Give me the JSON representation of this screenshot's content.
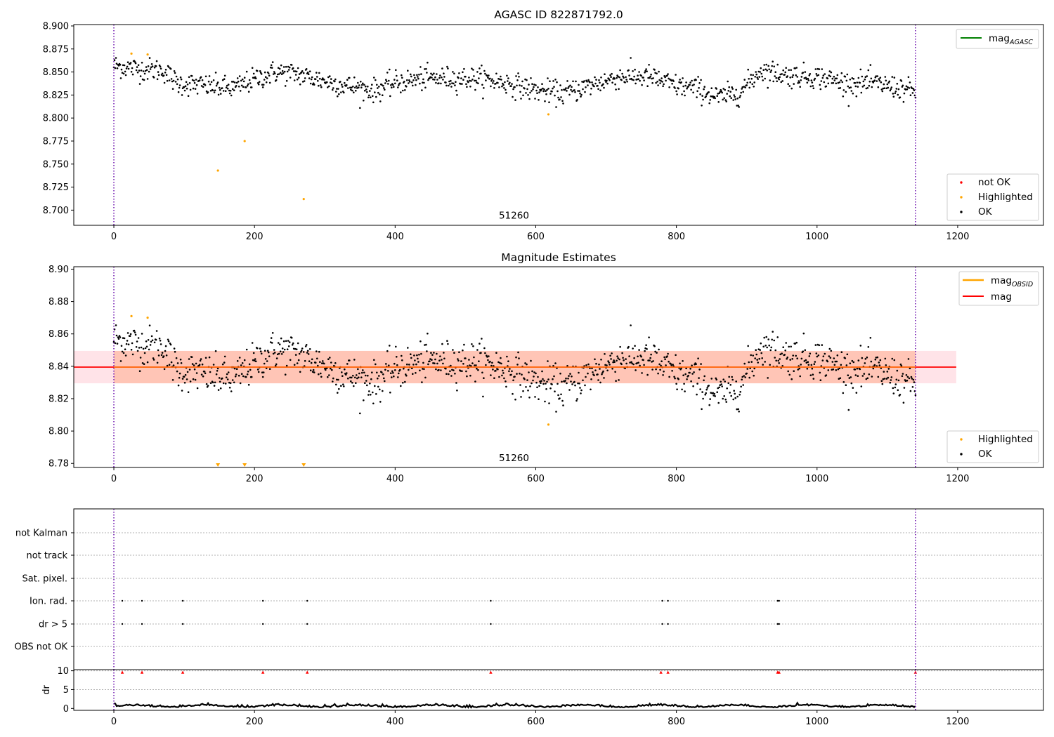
{
  "chart_data": [
    {
      "id": "agasc",
      "type": "scatter",
      "title": "AGASC ID 822871792.0",
      "xlim": [
        -57,
        1322
      ],
      "ylim": [
        8.6835,
        8.9015
      ],
      "xticks": [
        0,
        200,
        400,
        600,
        800,
        1000,
        1200
      ],
      "yticks": [
        8.7,
        8.725,
        8.75,
        8.775,
        8.8,
        8.825,
        8.85,
        8.875,
        8.9
      ],
      "ytick_labels": [
        "8.700",
        "8.725",
        "8.750",
        "8.775",
        "8.800",
        "8.825",
        "8.850",
        "8.875",
        "8.900"
      ],
      "vlines": [
        0,
        1140
      ],
      "annotation": {
        "text": "51260",
        "x": 569,
        "y": 8.6945
      },
      "legend_lines": [
        {
          "label": "mag",
          "sub": "AGASC",
          "color": "#008000"
        }
      ],
      "legend_points": [
        {
          "label": "not OK",
          "color": "#ff0000"
        },
        {
          "label": "Highlighted",
          "color": "#ffa500"
        },
        {
          "label": "OK",
          "color": "#000000"
        }
      ],
      "highlighted": [
        [
          25,
          8.87
        ],
        [
          48,
          8.869
        ],
        [
          148,
          8.743
        ],
        [
          186,
          8.775
        ],
        [
          270,
          8.712
        ],
        [
          618,
          8.804
        ]
      ]
    },
    {
      "id": "mag-estimates",
      "type": "scatter",
      "title": "Magnitude Estimates",
      "xlim": [
        -57,
        1322
      ],
      "ylim": [
        8.7775,
        8.9015
      ],
      "xticks": [
        0,
        200,
        400,
        600,
        800,
        1000,
        1200
      ],
      "yticks": [
        8.78,
        8.8,
        8.82,
        8.84,
        8.86,
        8.88,
        8.9
      ],
      "ytick_labels": [
        "8.78",
        "8.80",
        "8.82",
        "8.84",
        "8.86",
        "8.88",
        "8.90"
      ],
      "vlines": [
        0,
        1140
      ],
      "annotation": {
        "text": "51260",
        "x": 569,
        "y": 8.7835
      },
      "mag": 8.8395,
      "band": [
        8.8295,
        8.8495
      ],
      "band_x_end": 1198,
      "legend_lines": [
        {
          "label": "mag",
          "sub": "OBSID",
          "color": "#ffa500"
        },
        {
          "label": "mag",
          "sub": "",
          "color": "#ff0000"
        }
      ],
      "legend_points": [
        {
          "label": "Highlighted",
          "color": "#ffa500"
        },
        {
          "label": "OK",
          "color": "#000000"
        }
      ],
      "highlighted": [
        [
          25,
          8.871
        ],
        [
          48,
          8.87
        ],
        [
          618,
          8.804
        ]
      ],
      "offscale_markers": [
        148,
        186,
        270
      ]
    },
    {
      "id": "flags",
      "type": "scatter",
      "xlim": [
        -57,
        1322
      ],
      "categories": [
        "not Kalman",
        "not track",
        "Sat. pixel.",
        "Ion. rad.",
        "dr > 5",
        "OBS not OK"
      ],
      "flag_x": [
        12,
        40,
        98,
        212,
        275,
        536,
        780,
        788,
        944,
        946
      ],
      "flagged_rows": [
        "Ion. rad.",
        "dr > 5"
      ],
      "vlines": [
        0,
        1140
      ]
    },
    {
      "id": "dr",
      "type": "line",
      "ylabel": "dr",
      "xlim": [
        -57,
        1322
      ],
      "ylim": [
        -0.5,
        10.3
      ],
      "xticks": [
        0,
        200,
        400,
        600,
        800,
        1000,
        1200
      ],
      "yticks": [
        0,
        5,
        10
      ],
      "ytick_labels": [
        "0",
        "5",
        "10"
      ],
      "hlines": [
        5,
        10
      ],
      "red_markers_x": [
        12,
        40,
        98,
        212,
        275,
        536,
        778,
        788,
        944,
        946,
        1140
      ],
      "vlines": [
        0,
        1140
      ]
    }
  ]
}
